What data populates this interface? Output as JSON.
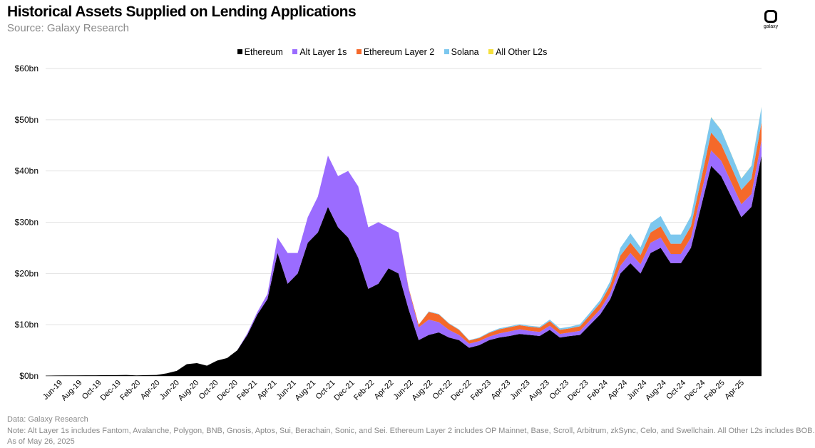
{
  "header": {
    "title": "Historical Assets Supplied on Lending Applications",
    "subtitle": "Source: Galaxy Research",
    "logo_text": "galaxy"
  },
  "legend": [
    {
      "label": "Ethereum",
      "color": "#000000"
    },
    {
      "label": "Alt Layer 1s",
      "color": "#9b6cff"
    },
    {
      "label": "Ethereum Layer 2",
      "color": "#f5692a"
    },
    {
      "label": "Solana",
      "color": "#7cc7ee"
    },
    {
      "label": "All Other L2s",
      "color": "#f5e03b"
    }
  ],
  "footer": {
    "data_note": "Data: Galaxy Research",
    "note": "Note: Alt Layer 1s includes Fantom, Avalanche, Polygon, BNB, Gnosis, Aptos, Sui, Berachain, Sonic, and Sei. Ethereum Layer 2  includes OP Mainnet, Base, Scroll, Arbitrum, zkSync, Celo, and Swellchain. All Other L2s includes BOB.",
    "as_of": "As of May 26, 2025"
  },
  "chart_data": {
    "type": "area",
    "stacked": true,
    "title": "Historical Assets Supplied on Lending Applications",
    "subtitle": "Source: Galaxy Research",
    "xlabel": "",
    "ylabel": "",
    "ylim": [
      0,
      60
    ],
    "y_ticks": [
      0,
      10,
      20,
      30,
      40,
      50,
      60
    ],
    "y_tick_labels": [
      "$0bn",
      "$10bn",
      "$20bn",
      "$30bn",
      "$40bn",
      "$50bn",
      "$60bn"
    ],
    "x_ticks": [
      "Jun-19",
      "Aug-19",
      "Oct-19",
      "Dec-19",
      "Feb-20",
      "Apr-20",
      "Jun-20",
      "Aug-20",
      "Oct-20",
      "Dec-20",
      "Feb-21",
      "Apr-21",
      "Jun-21",
      "Aug-21",
      "Oct-21",
      "Dec-21",
      "Feb-22",
      "Apr-22",
      "Jun-22",
      "Aug-22",
      "Oct-22",
      "Dec-22",
      "Feb-23",
      "Apr-23",
      "Jun-23",
      "Aug-23",
      "Oct-23",
      "Dec-23",
      "Feb-24",
      "Apr-24",
      "Jun-24",
      "Aug-24",
      "Oct-24",
      "Dec-24",
      "Feb-25",
      "Apr-25"
    ],
    "grid": true,
    "legend_position": "top-center",
    "x": [
      "Jun-19",
      "Jul-19",
      "Aug-19",
      "Sep-19",
      "Oct-19",
      "Nov-19",
      "Dec-19",
      "Jan-20",
      "Feb-20",
      "Mar-20",
      "Apr-20",
      "May-20",
      "Jun-20",
      "Jul-20",
      "Aug-20",
      "Sep-20",
      "Oct-20",
      "Nov-20",
      "Dec-20",
      "Jan-21",
      "Feb-21",
      "Mar-21",
      "Apr-21",
      "May-21",
      "Jun-21",
      "Jul-21",
      "Aug-21",
      "Sep-21",
      "Oct-21",
      "Nov-21",
      "Dec-21",
      "Jan-22",
      "Feb-22",
      "Mar-22",
      "Apr-22",
      "May-22",
      "Jun-22",
      "Jul-22",
      "Aug-22",
      "Sep-22",
      "Oct-22",
      "Nov-22",
      "Dec-22",
      "Jan-23",
      "Feb-23",
      "Mar-23",
      "Apr-23",
      "May-23",
      "Jun-23",
      "Jul-23",
      "Aug-23",
      "Sep-23",
      "Oct-23",
      "Nov-23",
      "Dec-23",
      "Jan-24",
      "Feb-24",
      "Mar-24",
      "Apr-24",
      "May-24",
      "Jun-24",
      "Jul-24",
      "Aug-24",
      "Sep-24",
      "Oct-24",
      "Nov-24",
      "Dec-24",
      "Jan-25",
      "Feb-25",
      "Mar-25",
      "Apr-25",
      "May-25"
    ],
    "series": [
      {
        "name": "Ethereum",
        "color": "#000000",
        "values": [
          0.05,
          0.08,
          0.1,
          0.1,
          0.12,
          0.12,
          0.15,
          0.15,
          0.2,
          0.1,
          0.15,
          0.2,
          0.5,
          1.0,
          2.3,
          2.5,
          2.0,
          3.0,
          3.5,
          5.0,
          8.0,
          12.0,
          15.0,
          24.0,
          18.0,
          20.0,
          26.0,
          28.0,
          33.0,
          29.0,
          27.0,
          23.0,
          17.0,
          18.0,
          21.0,
          20.0,
          13.0,
          7.0,
          8.0,
          8.5,
          7.5,
          7.0,
          5.5,
          6.0,
          7.0,
          7.5,
          7.8,
          8.2,
          8.0,
          7.8,
          9.0,
          7.5,
          7.8,
          8.0,
          10.0,
          12.0,
          15.0,
          20.0,
          22.0,
          20.0,
          24.0,
          25.0,
          22.0,
          22.0,
          25.0,
          33.0,
          41.0,
          39.0,
          35.0,
          31.0,
          33.0,
          43.0
        ]
      },
      {
        "name": "Alt Layer 1s",
        "color": "#9b6cff",
        "values": [
          0,
          0,
          0,
          0,
          0,
          0,
          0,
          0,
          0,
          0,
          0,
          0,
          0,
          0,
          0,
          0,
          0,
          0,
          0,
          0,
          0.3,
          0.5,
          1.0,
          3.0,
          6.0,
          4.0,
          5.0,
          7.0,
          10.0,
          10.0,
          13.0,
          14.0,
          12.0,
          12.0,
          8.0,
          8.0,
          4.0,
          2.5,
          3.0,
          2.0,
          1.5,
          1.0,
          0.8,
          0.8,
          0.7,
          0.8,
          0.9,
          0.9,
          0.8,
          0.8,
          0.8,
          0.7,
          0.7,
          0.8,
          0.9,
          1.0,
          1.2,
          1.5,
          2.0,
          1.8,
          2.0,
          2.0,
          1.8,
          1.8,
          2.0,
          2.5,
          3.0,
          3.0,
          2.8,
          2.5,
          2.5,
          3.0
        ]
      },
      {
        "name": "Ethereum Layer 2",
        "color": "#f5692a",
        "values": [
          0,
          0,
          0,
          0,
          0,
          0,
          0,
          0,
          0,
          0,
          0,
          0,
          0,
          0,
          0,
          0,
          0,
          0,
          0,
          0,
          0,
          0,
          0,
          0,
          0,
          0,
          0,
          0,
          0,
          0,
          0,
          0,
          0,
          0,
          0,
          0,
          0.2,
          0.5,
          1.5,
          1.5,
          1.2,
          1.0,
          0.6,
          0.6,
          0.7,
          0.8,
          0.8,
          0.8,
          0.8,
          0.8,
          0.9,
          0.8,
          0.8,
          0.9,
          1.0,
          1.2,
          1.5,
          2.0,
          2.0,
          1.8,
          2.0,
          2.2,
          2.0,
          2.0,
          2.2,
          2.8,
          3.5,
          3.2,
          3.0,
          2.8,
          3.0,
          3.5
        ]
      },
      {
        "name": "Solana",
        "color": "#7cc7ee",
        "values": [
          0,
          0,
          0,
          0,
          0,
          0,
          0,
          0,
          0,
          0,
          0,
          0,
          0,
          0,
          0,
          0,
          0,
          0,
          0,
          0,
          0,
          0,
          0,
          0,
          0,
          0,
          0,
          0,
          0,
          0,
          0,
          0,
          0,
          0,
          0,
          0,
          0,
          0,
          0.1,
          0.1,
          0.1,
          0.1,
          0.1,
          0.1,
          0.15,
          0.2,
          0.2,
          0.2,
          0.2,
          0.2,
          0.3,
          0.3,
          0.3,
          0.4,
          0.5,
          0.6,
          0.8,
          1.5,
          1.8,
          1.5,
          1.8,
          2.0,
          1.8,
          1.8,
          2.0,
          2.5,
          3.0,
          2.8,
          2.5,
          2.2,
          2.5,
          3.0
        ]
      },
      {
        "name": "All Other L2s",
        "color": "#f5e03b",
        "values": [
          0,
          0,
          0,
          0,
          0,
          0,
          0,
          0,
          0,
          0,
          0,
          0,
          0,
          0,
          0,
          0,
          0,
          0,
          0,
          0,
          0,
          0,
          0,
          0,
          0,
          0,
          0,
          0,
          0,
          0,
          0,
          0,
          0,
          0,
          0,
          0,
          0,
          0,
          0,
          0,
          0,
          0,
          0,
          0,
          0,
          0,
          0,
          0,
          0,
          0,
          0,
          0,
          0,
          0,
          0,
          0,
          0,
          0,
          0,
          0,
          0,
          0,
          0,
          0,
          0.01,
          0.02,
          0.03,
          0.03,
          0.03,
          0.03,
          0.03,
          0.04
        ]
      }
    ]
  }
}
